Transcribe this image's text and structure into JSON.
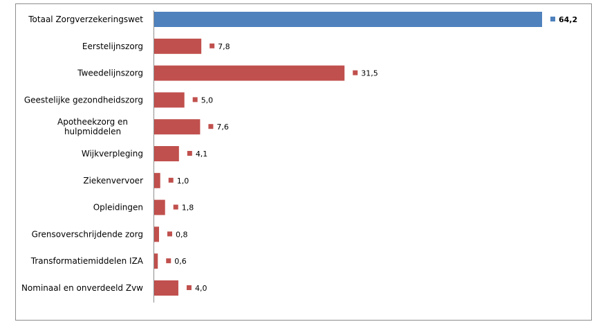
{
  "chart_data": {
    "type": "bar",
    "orientation": "horizontal",
    "categories": [
      "Totaal Zorgverzekeringswet",
      "Eerstelijnszorg",
      "Tweedelijnszorg",
      "Geestelijke gezondheidszorg",
      "Apotheekzorg en hulpmiddelen",
      "Wijkverpleging",
      "Ziekenvervoer",
      "Opleidingen",
      "Grensoverschrijdende zorg",
      "Transformatiemiddelen IZA",
      "Nominaal en onverdeeld Zvw"
    ],
    "values": [
      64.2,
      7.8,
      31.5,
      5.0,
      7.6,
      4.1,
      1.0,
      1.8,
      0.8,
      0.6,
      4.0
    ],
    "value_labels": [
      "64,2",
      "7,8",
      "31,5",
      "5,0",
      "7,6",
      "4,1",
      "1,0",
      "1,8",
      "0,8",
      "0,6",
      "4,0"
    ],
    "bar_colors": [
      "#4f81bd",
      "#c0504d",
      "#c0504d",
      "#c0504d",
      "#c0504d",
      "#c0504d",
      "#c0504d",
      "#c0504d",
      "#c0504d",
      "#c0504d",
      "#c0504d"
    ],
    "xlim": [
      0,
      64.2
    ],
    "title": "",
    "xlabel": "",
    "ylabel": "",
    "grid": false,
    "legend": "none"
  }
}
